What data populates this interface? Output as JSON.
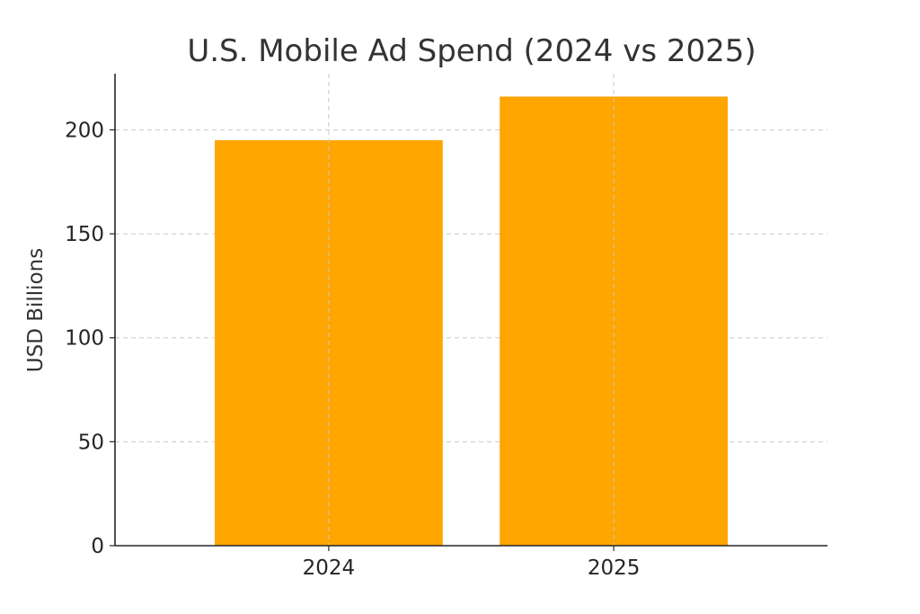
{
  "chart_data": {
    "type": "bar",
    "title": "U.S. Mobile Ad Spend (2024 vs 2025)",
    "xlabel": "",
    "ylabel": "USD Billions",
    "categories": [
      "2024",
      "2025"
    ],
    "values": [
      195,
      216
    ],
    "ylim": [
      0,
      227
    ],
    "yticks": [
      0,
      50,
      100,
      150,
      200
    ],
    "ytick_labels": [
      "0",
      "50",
      "100",
      "150",
      "200"
    ],
    "bar_color": "#FFA500",
    "grid": true,
    "legend": false
  }
}
